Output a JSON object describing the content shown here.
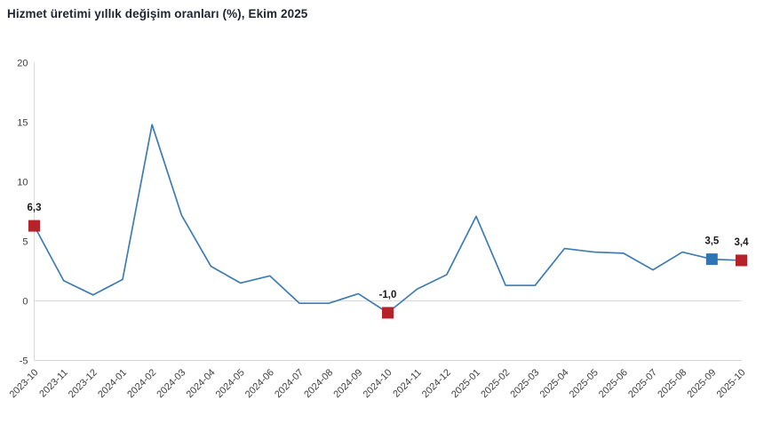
{
  "title": "Hizmet üretimi yıllık değişim oranları (%), Ekim 2025",
  "chart_data": {
    "type": "line",
    "title": "Hizmet üretimi yıllık değişim oranları (%), Ekim 2025",
    "x": [
      "2023-10",
      "2023-11",
      "2023-12",
      "2024-01",
      "2024-02",
      "2024-03",
      "2024-04",
      "2024-05",
      "2024-06",
      "2024-07",
      "2024-08",
      "2024-09",
      "2024-10",
      "2024-11",
      "2024-12",
      "2025-01",
      "2025-02",
      "2025-03",
      "2025-04",
      "2025-05",
      "2025-06",
      "2025-07",
      "2025-08",
      "2025-09",
      "2025-10"
    ],
    "values": [
      6.3,
      1.7,
      0.5,
      1.8,
      14.8,
      7.2,
      2.9,
      1.5,
      2.1,
      -0.2,
      -0.2,
      0.6,
      -1.0,
      1.0,
      2.2,
      7.1,
      1.3,
      1.3,
      4.4,
      4.1,
      4.0,
      2.6,
      4.1,
      3.5,
      3.4
    ],
    "y_ticks": [
      20,
      15,
      10,
      5,
      0,
      -5
    ],
    "ylim": [
      -5,
      20
    ],
    "xlabel": "",
    "ylabel": "",
    "legend": "none",
    "grid": "zero-line-only",
    "line_color": "#3E7CB1",
    "axis_color": "#D9D9D9",
    "zero_line_color": "#DBDBDB",
    "annotations": [
      {
        "x": "2023-10",
        "index": 0,
        "value": 6.3,
        "label": "6,3",
        "marker": "square",
        "color": "#B5222A"
      },
      {
        "x": "2024-10",
        "index": 12,
        "value": -1.0,
        "label": "-1,0",
        "marker": "square",
        "color": "#B5222A"
      },
      {
        "x": "2025-09",
        "index": 23,
        "value": 3.5,
        "label": "3,5",
        "marker": "square",
        "color": "#2E75B6"
      },
      {
        "x": "2025-10",
        "index": 24,
        "value": 3.4,
        "label": "3,4",
        "marker": "square",
        "color": "#B5222A"
      }
    ]
  }
}
